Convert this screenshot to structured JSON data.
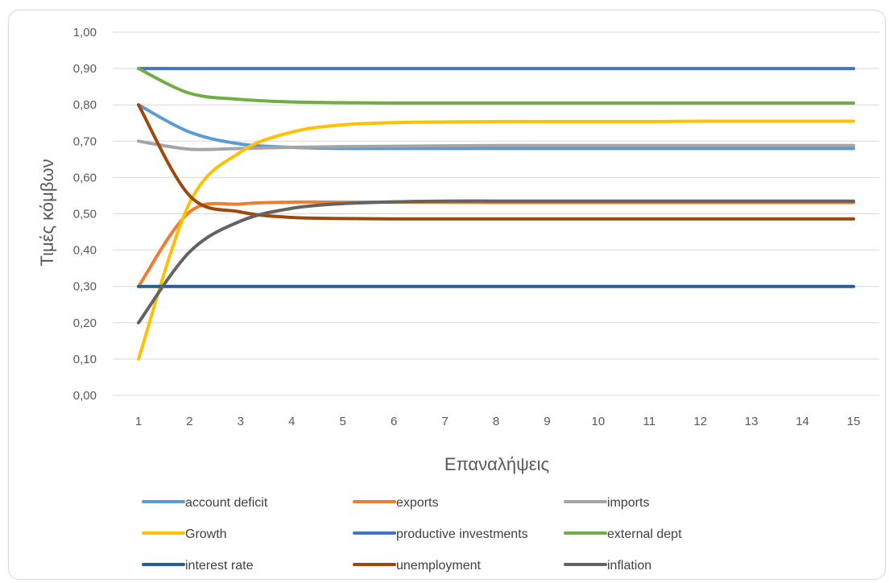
{
  "chart_data": {
    "type": "line",
    "title": "",
    "xlabel": "Επαναλήψεις",
    "ylabel": "Τιμές κόμβων",
    "x": [
      1,
      2,
      3,
      4,
      5,
      6,
      7,
      8,
      9,
      10,
      11,
      12,
      13,
      14,
      15
    ],
    "x_tick_labels": [
      "1",
      "2",
      "3",
      "4",
      "5",
      "6",
      "7",
      "8",
      "9",
      "10",
      "11",
      "12",
      "13",
      "14",
      "15"
    ],
    "ylim": [
      0,
      1
    ],
    "y_tick_labels": [
      "0,00",
      "0,10",
      "0,20",
      "0,30",
      "0,40",
      "0,50",
      "0,60",
      "0,70",
      "0,80",
      "0,90",
      "1,00"
    ],
    "y_ticks": [
      0,
      0.1,
      0.2,
      0.3,
      0.4,
      0.5,
      0.6,
      0.7,
      0.8,
      0.9,
      1.0
    ],
    "grid": "horizontal",
    "legend_position": "bottom",
    "series": [
      {
        "name": "account deficit",
        "color": "#5b9bd5",
        "values": [
          0.8,
          0.725,
          0.692,
          0.683,
          0.68,
          0.68,
          0.68,
          0.68,
          0.68,
          0.68,
          0.68,
          0.68,
          0.68,
          0.68,
          0.68
        ]
      },
      {
        "name": "exports",
        "color": "#ed7d31",
        "values": [
          0.3,
          0.505,
          0.527,
          0.532,
          0.532,
          0.532,
          0.532,
          0.531,
          0.531,
          0.531,
          0.531,
          0.531,
          0.531,
          0.531,
          0.531
        ]
      },
      {
        "name": "imports",
        "color": "#a5a5a5",
        "values": [
          0.7,
          0.678,
          0.68,
          0.683,
          0.685,
          0.686,
          0.687,
          0.688,
          0.688,
          0.688,
          0.688,
          0.688,
          0.688,
          0.688,
          0.688
        ]
      },
      {
        "name": "Growth",
        "color": "#ffc000",
        "values": [
          0.1,
          0.53,
          0.67,
          0.725,
          0.745,
          0.751,
          0.753,
          0.754,
          0.754,
          0.754,
          0.754,
          0.755,
          0.755,
          0.755,
          0.755
        ]
      },
      {
        "name": "productive investments",
        "color": "#4472c4",
        "values": [
          0.9,
          0.9,
          0.9,
          0.9,
          0.9,
          0.9,
          0.9,
          0.9,
          0.9,
          0.9,
          0.9,
          0.9,
          0.9,
          0.9,
          0.9
        ]
      },
      {
        "name": "external dept",
        "color": "#70ad47",
        "values": [
          0.9,
          0.832,
          0.815,
          0.808,
          0.806,
          0.805,
          0.805,
          0.805,
          0.805,
          0.805,
          0.805,
          0.805,
          0.805,
          0.805,
          0.805
        ]
      },
      {
        "name": "interest rate",
        "color": "#255e91",
        "values": [
          0.3,
          0.3,
          0.3,
          0.3,
          0.3,
          0.3,
          0.3,
          0.3,
          0.3,
          0.3,
          0.3,
          0.3,
          0.3,
          0.3,
          0.3
        ]
      },
      {
        "name": "unemployment",
        "color": "#9e480e",
        "values": [
          0.8,
          0.55,
          0.505,
          0.49,
          0.487,
          0.486,
          0.486,
          0.486,
          0.486,
          0.486,
          0.486,
          0.486,
          0.486,
          0.486,
          0.486
        ]
      },
      {
        "name": "inflation",
        "color": "#636363",
        "values": [
          0.2,
          0.395,
          0.48,
          0.515,
          0.528,
          0.533,
          0.535,
          0.535,
          0.535,
          0.535,
          0.535,
          0.535,
          0.535,
          0.535,
          0.535
        ]
      }
    ]
  }
}
